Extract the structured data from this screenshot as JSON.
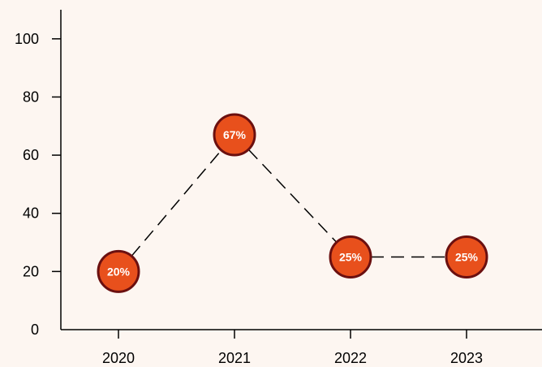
{
  "chart_data": {
    "type": "line",
    "title": "",
    "xlabel": "",
    "ylabel": "",
    "categories": [
      "2020",
      "2021",
      "2022",
      "2023"
    ],
    "values": [
      20,
      67,
      25,
      25
    ],
    "data_labels": [
      "20%",
      "67%",
      "25%",
      "25%"
    ],
    "yticks": [
      "0",
      "20",
      "40",
      "60",
      "80",
      "100"
    ],
    "ylim": [
      0,
      110
    ],
    "grid": false,
    "line_style": "dashed",
    "colors": {
      "background": "#fdf6f1",
      "marker_fill": "#e8501c",
      "marker_stroke": "#6b1010",
      "line": "#000000",
      "label": "#ffffff"
    }
  }
}
